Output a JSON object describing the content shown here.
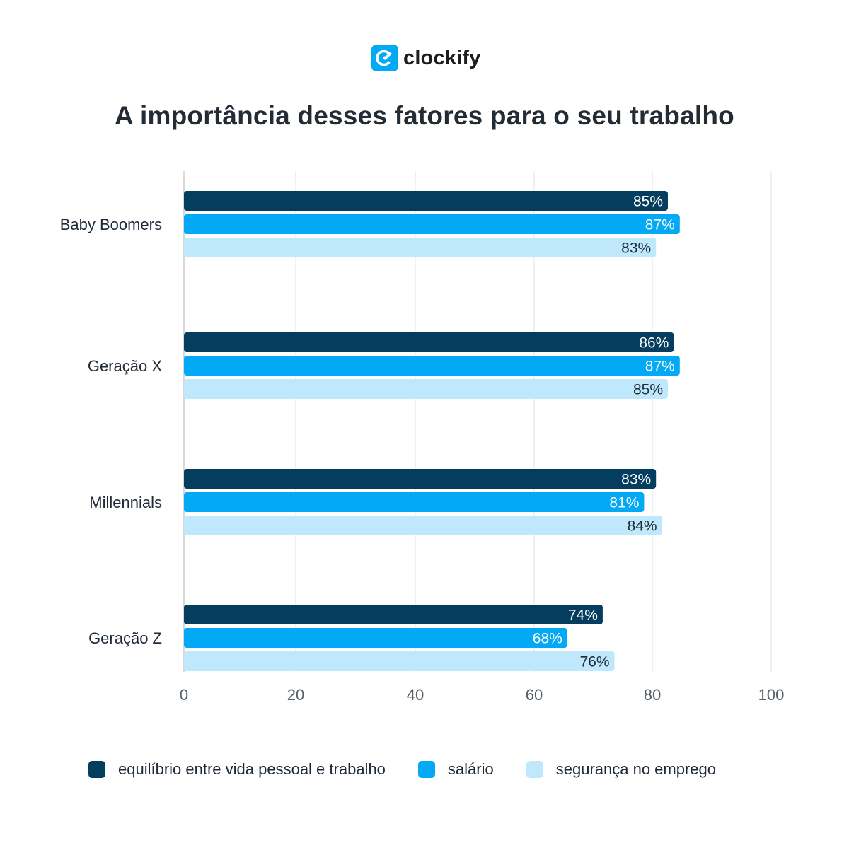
{
  "brand": {
    "name": "clockify",
    "icon": "clockify-logo-icon",
    "color": "#03a9f4"
  },
  "chart_data": {
    "type": "bar",
    "orientation": "horizontal",
    "title": "A importância desses fatores para o seu trabalho",
    "xlabel": "",
    "ylabel": "",
    "xlim": [
      0,
      100
    ],
    "x_ticks": [
      0,
      20,
      40,
      60,
      80,
      100
    ],
    "grid": true,
    "legend_position": "bottom",
    "categories": [
      "Baby Boomers",
      "Geração X",
      "Millennials",
      "Geração Z"
    ],
    "series": [
      {
        "name": "equilíbrio entre vida pessoal e trabalho",
        "color": "#053d5e",
        "label_color": "#ffffff",
        "values": [
          85,
          86,
          83,
          74
        ]
      },
      {
        "name": "salário",
        "color": "#03a9f4",
        "label_color": "#ffffff",
        "values": [
          87,
          87,
          81,
          68
        ]
      },
      {
        "name": "segurança no emprego",
        "color": "#bfe8fd",
        "label_color": "#1f2a36",
        "values": [
          83,
          85,
          84,
          76
        ]
      }
    ],
    "value_suffix": "%"
  }
}
